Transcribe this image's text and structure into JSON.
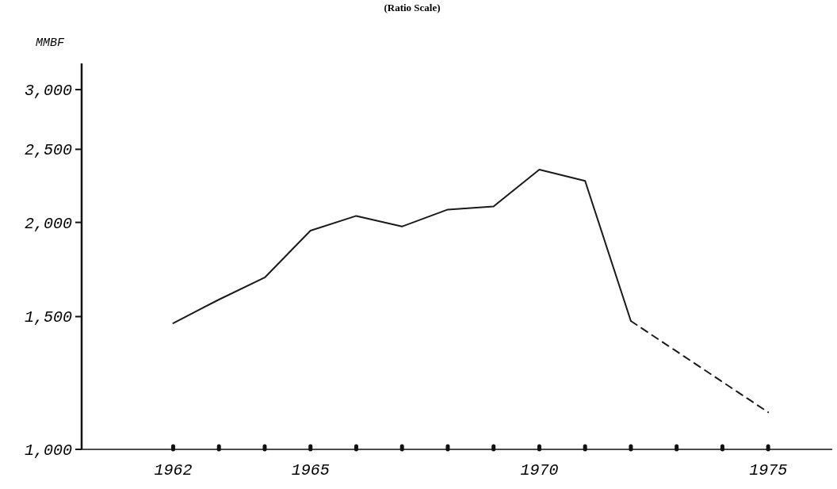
{
  "chart_data": {
    "type": "line",
    "title": "(Ratio Scale)",
    "ylabel": "MMBF",
    "log": true,
    "marker": "none",
    "xlim": [
      1960,
      1976.4
    ],
    "ylim": [
      1000,
      3250
    ],
    "xticks": [
      1962,
      {
        "value": 1963,
        "label": null
      },
      {
        "value": 1964,
        "label": null
      },
      1965,
      {
        "value": 1966,
        "label": null
      },
      {
        "value": 1967,
        "label": null
      },
      {
        "value": 1968,
        "label": null
      },
      {
        "value": 1969,
        "label": null
      },
      1970,
      {
        "value": 1971,
        "label": null
      },
      {
        "value": 1972,
        "label": null
      },
      {
        "value": 1973,
        "label": null
      },
      {
        "value": 1974,
        "label": null
      },
      1975
    ],
    "yticks": [
      {
        "value": 1000,
        "label": "1,000"
      },
      {
        "value": 1500,
        "label": "1,500"
      },
      {
        "value": 2000,
        "label": "2,000"
      },
      {
        "value": 2500,
        "label": "2,500"
      },
      {
        "value": 3000,
        "label": "3,000"
      }
    ],
    "series": [
      {
        "color": "#1a1a1a",
        "line_style": "solid",
        "x": [
          1962,
          1963,
          1964,
          1965,
          1966,
          1967,
          1968,
          1969,
          1970,
          1971,
          1972
        ],
        "values": [
          1470,
          1580,
          1690,
          1950,
          2040,
          1975,
          2080,
          2100,
          2350,
          2270,
          1480
        ]
      },
      {
        "color": "#1a1a1a",
        "line_style": "dashed",
        "x": [
          1972,
          1975
        ],
        "values": [
          1480,
          1120
        ]
      }
    ]
  }
}
